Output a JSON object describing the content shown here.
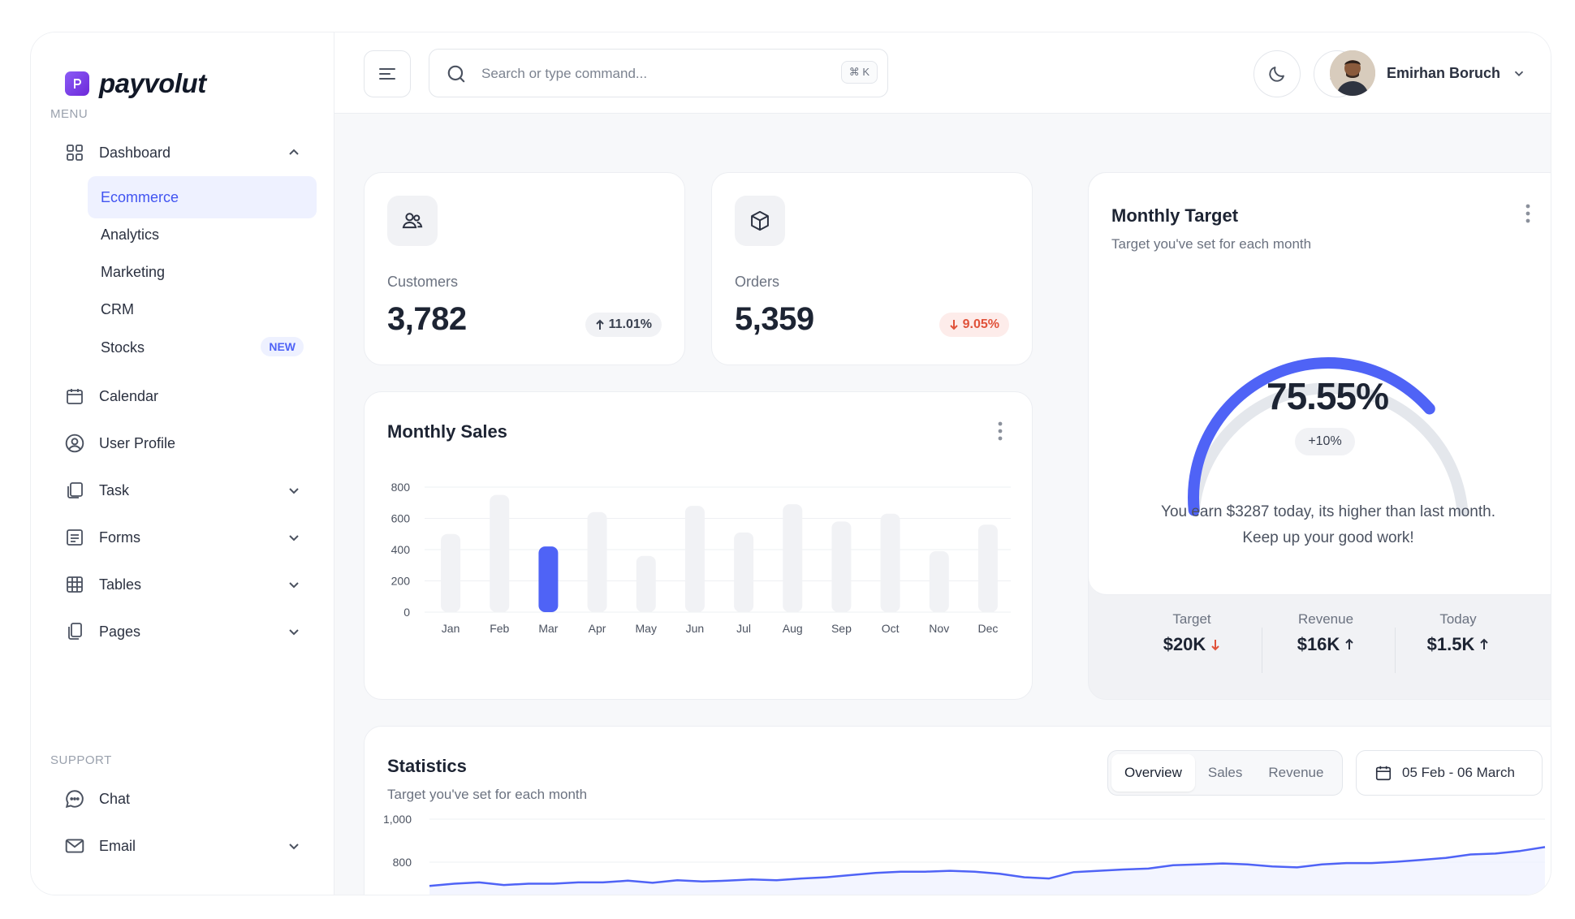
{
  "brand": {
    "name": "payvolut",
    "accent": "#4f63f6"
  },
  "sidebar": {
    "menu_label": "MENU",
    "support_label": "SUPPORT",
    "dashboard": {
      "label": "Dashboard",
      "icon": "grid-icon"
    },
    "sub_items": [
      {
        "label": "Ecommerce",
        "active": true
      },
      {
        "label": "Analytics"
      },
      {
        "label": "Marketing"
      },
      {
        "label": "CRM"
      },
      {
        "label": "Stocks",
        "badge": "NEW"
      }
    ],
    "items": [
      {
        "label": "Calendar",
        "icon": "calendar-icon"
      },
      {
        "label": "User Profile",
        "icon": "user-circle-icon"
      },
      {
        "label": "Task",
        "icon": "task-icon"
      },
      {
        "label": "Forms",
        "icon": "forms-icon"
      },
      {
        "label": "Tables",
        "icon": "table-icon"
      },
      {
        "label": "Pages",
        "icon": "pages-icon"
      }
    ],
    "support_items": [
      {
        "label": "Chat",
        "icon": "chat-icon"
      },
      {
        "label": "Email",
        "icon": "mail-icon"
      }
    ]
  },
  "header": {
    "search_placeholder": "Search or type command...",
    "shortcut": "⌘ K",
    "user_name": "Emirhan Boruch"
  },
  "stats": {
    "customers": {
      "label": "Customers",
      "value": "3,782",
      "change": "11.01%",
      "direction": "up"
    },
    "orders": {
      "label": "Orders",
      "value": "5,359",
      "change": "9.05%",
      "direction": "down"
    }
  },
  "monthly_sales": {
    "title": "Monthly Sales",
    "chart_data": {
      "type": "bar",
      "categories": [
        "Jan",
        "Feb",
        "Mar",
        "Apr",
        "May",
        "Jun",
        "Jul",
        "Aug",
        "Sep",
        "Oct",
        "Nov",
        "Dec"
      ],
      "values": [
        500,
        750,
        420,
        640,
        360,
        680,
        510,
        690,
        580,
        630,
        390,
        560
      ],
      "highlighted": "Mar",
      "yticks": [
        800,
        600,
        400,
        200,
        0
      ],
      "ylim": [
        0,
        800
      ]
    }
  },
  "monthly_target": {
    "title": "Monthly Target",
    "subtitle": "Target you've set for each month",
    "percent_label": "75.55%",
    "percent_value": 75.55,
    "change": "+10%",
    "message_line1": "You earn $3287 today, its higher than last month.",
    "message_line2": "Keep up your good work!",
    "summary": [
      {
        "label": "Target",
        "value": "$20K",
        "direction": "down"
      },
      {
        "label": "Revenue",
        "value": "$16K",
        "direction": "up"
      },
      {
        "label": "Today",
        "value": "$1.5K",
        "direction": "up"
      }
    ]
  },
  "statistics": {
    "title": "Statistics",
    "subtitle": "Target you've set for each month",
    "tabs": [
      {
        "label": "Overview",
        "active": true
      },
      {
        "label": "Sales"
      },
      {
        "label": "Revenue"
      }
    ],
    "date_range": "05 Feb - 06 March",
    "chart_data": {
      "type": "line",
      "yticks": [
        "1,000",
        "800"
      ],
      "series": [
        {
          "values": [
            690,
            700,
            706,
            694,
            700,
            700,
            706,
            706,
            714,
            704,
            716,
            710,
            714,
            720,
            716,
            724,
            730,
            740,
            750,
            756,
            756,
            760,
            756,
            746,
            730,
            724,
            754,
            760,
            766,
            770,
            786,
            790,
            794,
            790,
            780,
            776,
            790,
            796,
            796,
            802,
            810,
            820,
            836,
            840,
            852,
            870
          ]
        }
      ]
    }
  }
}
